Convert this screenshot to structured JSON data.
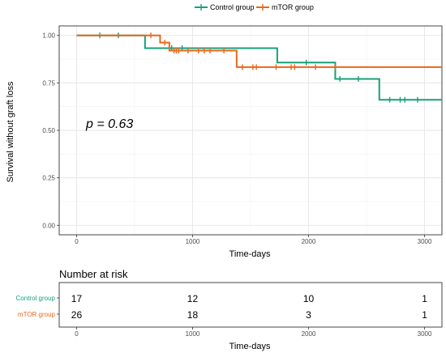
{
  "chart_data": {
    "type": "line",
    "subtype": "kaplan-meier",
    "title": "",
    "xlabel": "Time-days",
    "ylabel": "Survival without graft loss",
    "xlim": [
      -150,
      3150
    ],
    "ylim": [
      -0.05,
      1.05
    ],
    "x_ticks": [
      0,
      1000,
      2000,
      3000
    ],
    "y_ticks": [
      0.0,
      0.25,
      0.5,
      0.75,
      1.0
    ],
    "y_tick_labels": [
      "0.00",
      "0.25",
      "0.50",
      "0.75",
      "1.00"
    ],
    "grid": true,
    "legend_position": "top",
    "annotation": "p = 0.63",
    "series": [
      {
        "name": "Control group",
        "color": "#17a07a",
        "steps": [
          [
            0,
            1.0
          ],
          [
            590,
            0.933
          ],
          [
            800,
            0.933
          ],
          [
            1730,
            0.857
          ],
          [
            2230,
            0.771
          ],
          [
            2610,
            0.661
          ],
          [
            3150,
            0.661
          ]
        ],
        "censored": [
          [
            200,
            1.0
          ],
          [
            360,
            1.0
          ],
          [
            820,
            0.933
          ],
          [
            910,
            0.933
          ],
          [
            1980,
            0.857
          ],
          [
            2270,
            0.771
          ],
          [
            2430,
            0.771
          ],
          [
            2700,
            0.661
          ],
          [
            2790,
            0.661
          ],
          [
            2830,
            0.661
          ],
          [
            2940,
            0.661
          ]
        ]
      },
      {
        "name": "mTOR group",
        "color": "#e8681c",
        "steps": [
          [
            0,
            1.0
          ],
          [
            720,
            0.962
          ],
          [
            800,
            0.92
          ],
          [
            1380,
            0.833
          ],
          [
            3150,
            0.833
          ]
        ],
        "censored": [
          [
            640,
            1.0
          ],
          [
            760,
            0.962
          ],
          [
            840,
            0.92
          ],
          [
            860,
            0.92
          ],
          [
            880,
            0.92
          ],
          [
            960,
            0.92
          ],
          [
            1050,
            0.92
          ],
          [
            1100,
            0.92
          ],
          [
            1150,
            0.92
          ],
          [
            1270,
            0.92
          ],
          [
            1430,
            0.833
          ],
          [
            1520,
            0.833
          ],
          [
            1550,
            0.833
          ],
          [
            1720,
            0.833
          ],
          [
            1850,
            0.833
          ],
          [
            1880,
            0.833
          ],
          [
            2060,
            0.833
          ],
          [
            2230,
            0.833
          ]
        ]
      }
    ]
  },
  "risk_table": {
    "title": "Number at risk",
    "xlabel": "Time-days",
    "x_ticks": [
      0,
      1000,
      2000,
      3000
    ],
    "rows": [
      {
        "name": "Control group",
        "color": "#17a07a",
        "values": [
          "17",
          "12",
          "10",
          "1"
        ]
      },
      {
        "name": "mTOR group",
        "color": "#e8681c",
        "values": [
          "26",
          "18",
          "3",
          "1"
        ]
      }
    ]
  }
}
